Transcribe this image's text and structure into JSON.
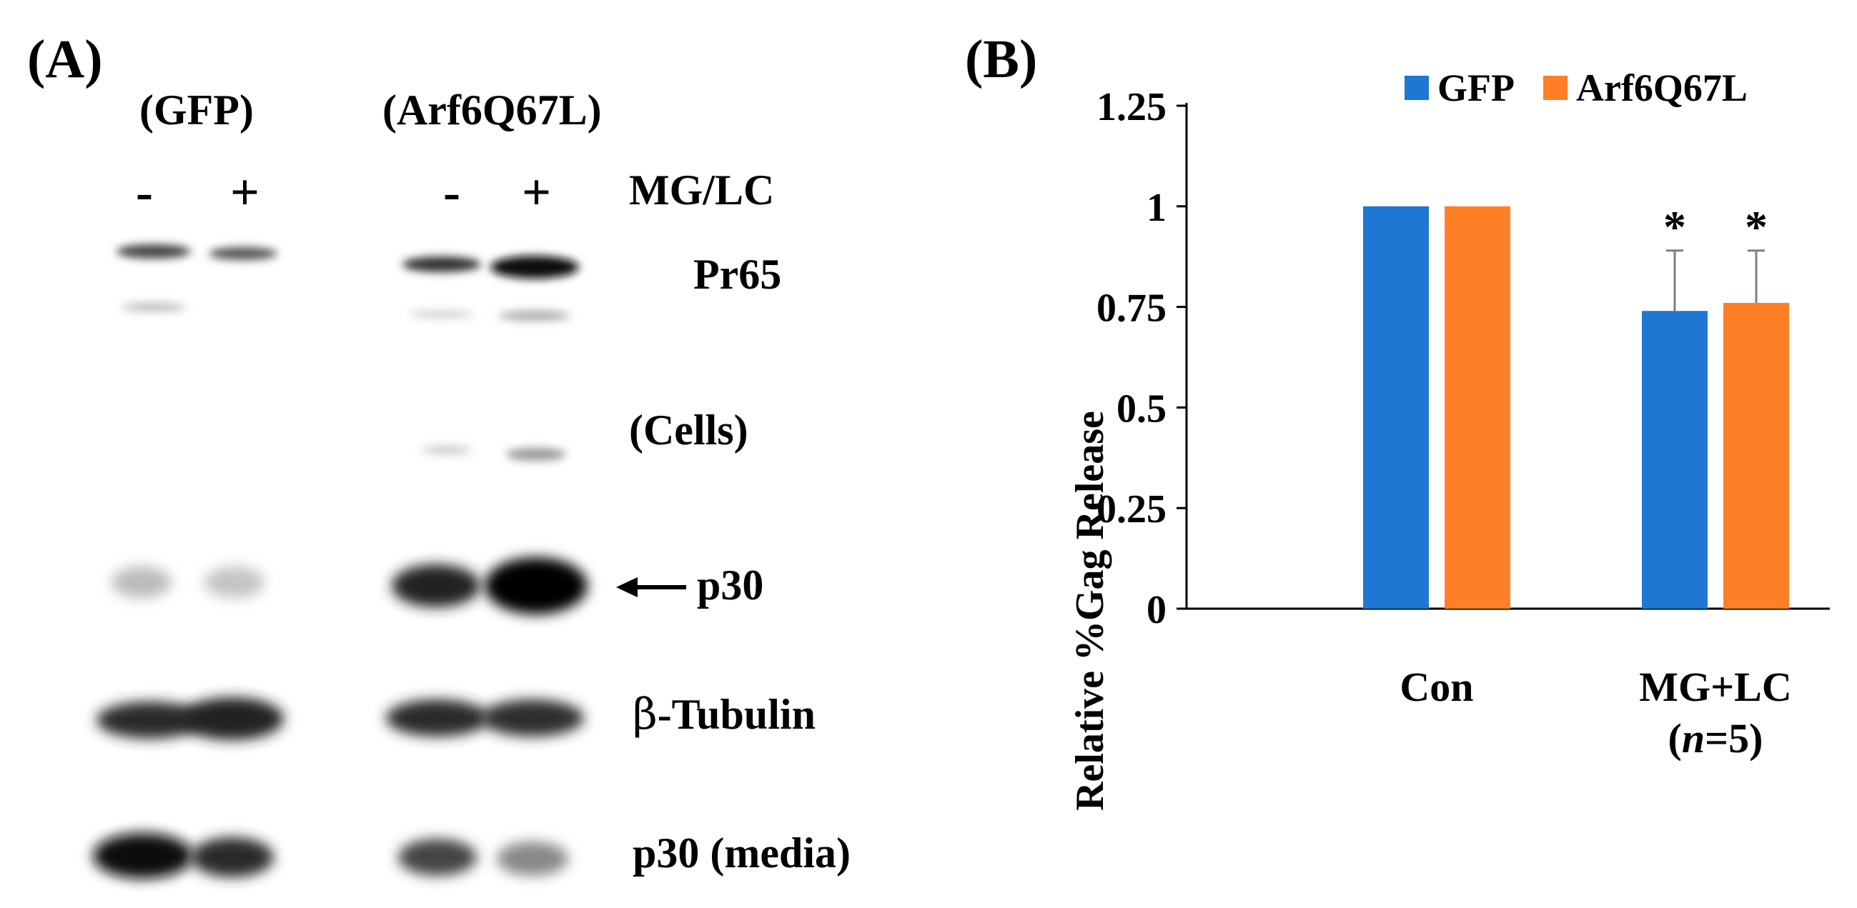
{
  "figure": {
    "panel_a_label": "(A)",
    "panel_b_label": "(B)"
  },
  "blot": {
    "group_labels": [
      "(GFP)",
      "(Arf6Q67L)"
    ],
    "treatment_label": "MG/LC",
    "lane_signs": [
      "-",
      "+",
      "-",
      "+"
    ],
    "band_labels": {
      "pr65": "Pr65",
      "cells": "(Cells)",
      "p30": "p30",
      "tubulin_prefix": "β",
      "tubulin": "-Tubulin",
      "p30_media": "p30 (media)"
    }
  },
  "chart_data": {
    "type": "bar",
    "title": "",
    "xlabel": "",
    "ylabel": "Relative %Gag Release",
    "categories": [
      "Con",
      "MG+LC"
    ],
    "category_note_prefix": "(",
    "category_note_italic": "n",
    "category_note_suffix": "=5)",
    "series": [
      {
        "name": "GFP",
        "color": "#1f77d4",
        "values": [
          1.0,
          0.74
        ],
        "errors": [
          0,
          0.15
        ]
      },
      {
        "name": "Arf6Q67L",
        "color": "#ff7f27",
        "values": [
          1.0,
          0.76
        ],
        "errors": [
          0,
          0.13
        ]
      }
    ],
    "ylim": [
      0,
      1.25
    ],
    "yticks": [
      0,
      0.25,
      0.5,
      0.75,
      1,
      1.25
    ],
    "ytick_labels": [
      "0",
      "0.25",
      "0.5",
      "0.75",
      "1",
      "1.25"
    ],
    "significance": [
      {
        "category": 1,
        "series": 0,
        "mark": "*"
      },
      {
        "category": 1,
        "series": 1,
        "mark": "*"
      }
    ],
    "grid": false,
    "legend_position": "top"
  }
}
